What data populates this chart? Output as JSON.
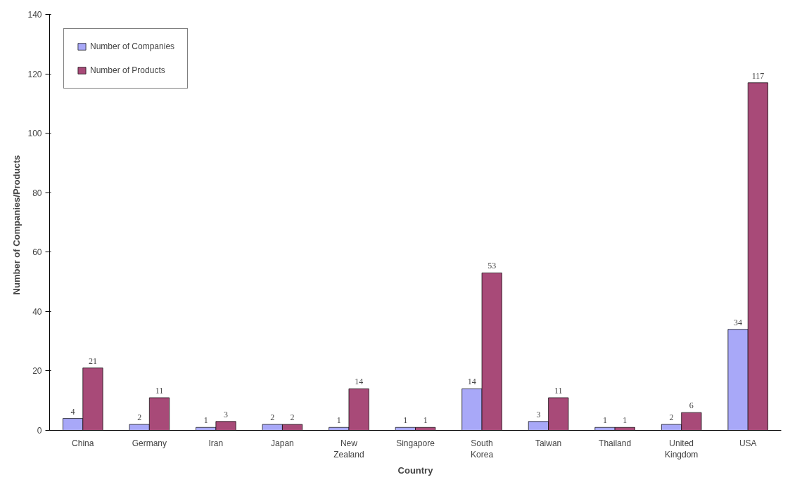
{
  "chart_data": {
    "type": "bar",
    "xlabel": "Country",
    "ylabel": "Number  of  Companies/Products",
    "categories": [
      "China",
      "Germany",
      "Iran",
      "Japan",
      "New Zealand",
      "Singapore",
      "South Korea",
      "Taiwan",
      "Thailand",
      "United Kingdom",
      "USA"
    ],
    "series": [
      {
        "name": "Number of Companies",
        "color": "#a8a8f8",
        "values": [
          4,
          2,
          1,
          2,
          1,
          1,
          14,
          3,
          1,
          2,
          34
        ]
      },
      {
        "name": "Number of Products",
        "color": "#a84a78",
        "values": [
          21,
          11,
          3,
          2,
          14,
          1,
          53,
          11,
          1,
          6,
          117
        ]
      }
    ],
    "ylim": [
      0,
      140
    ],
    "yticks": [
      0,
      20,
      40,
      60,
      80,
      100,
      120,
      140
    ],
    "data_labels": true,
    "grid": false,
    "legend": "top left"
  }
}
